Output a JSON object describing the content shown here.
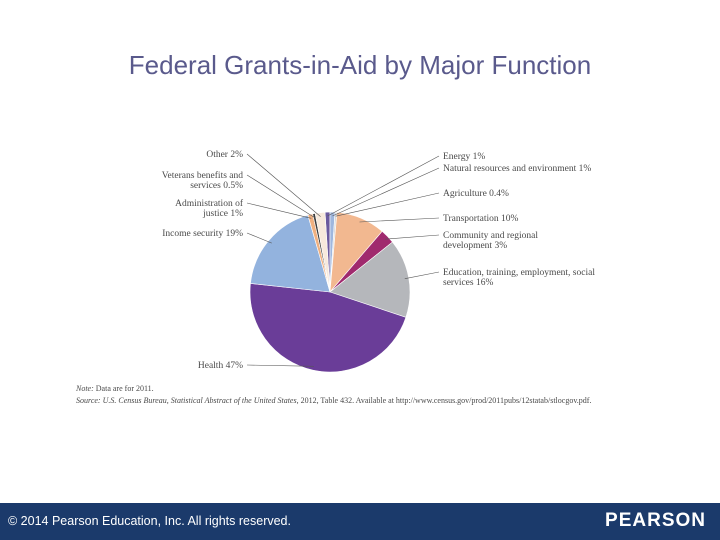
{
  "slide": {
    "title": "Federal Grants-in-Aid by Major Function",
    "note_prefix": "Note:",
    "note_text": " Data are for 2011.",
    "source_prefix": "Source: U.S. Census Bureau, ",
    "source_italic": "Statistical Abstract of the United States",
    "source_suffix": ", 2012, Table 432. Available at http://www.census.gov/prod/2011pubs/12statab/stlocgov.pdf."
  },
  "footer": {
    "copyright": "© 2014  Pearson Education, Inc. All rights reserved.",
    "logo": "PEARSON"
  },
  "chart_data": {
    "type": "pie",
    "unit": "%",
    "slices": [
      {
        "name": "Energy",
        "label": [
          "Energy 1%"
        ],
        "value": 1,
        "color": "#6b5a9e"
      },
      {
        "name": "Natural resources and environment",
        "label": [
          "Natural resources and environment 1%"
        ],
        "value": 1,
        "color": "#9fb7de"
      },
      {
        "name": "Agriculture",
        "label": [
          "Agriculture 0.4%"
        ],
        "value": 0.4,
        "color": "#d8d8d8"
      },
      {
        "name": "Transportation",
        "label": [
          "Transportation 10%"
        ],
        "value": 10,
        "color": "#f2b890"
      },
      {
        "name": "Community and regional development",
        "label": [
          "Community and regional",
          "development 3%"
        ],
        "value": 3,
        "color": "#a02a6e"
      },
      {
        "name": "Education, training, employment, social services",
        "label": [
          "Education, training, employment, social",
          "services 16%"
        ],
        "value": 16,
        "color": "#b5b7bb"
      },
      {
        "name": "Health",
        "label": [
          "Health 47%"
        ],
        "value": 47,
        "color": "#6a3d98"
      },
      {
        "name": "Income security",
        "label": [
          "Income security 19%"
        ],
        "value": 19,
        "color": "#93b3de"
      },
      {
        "name": "Administration of justice",
        "label": [
          "Administration of",
          "justice 1%"
        ],
        "value": 1,
        "color": "#f0b080"
      },
      {
        "name": "Veterans benefits and services",
        "label": [
          "Veterans benefits and",
          "services 0.5%"
        ],
        "value": 0.5,
        "color": "#3c3c3c"
      },
      {
        "name": "Other",
        "label": [
          "Other 2%"
        ],
        "value": 2,
        "color": "#f7e9dc"
      }
    ]
  }
}
